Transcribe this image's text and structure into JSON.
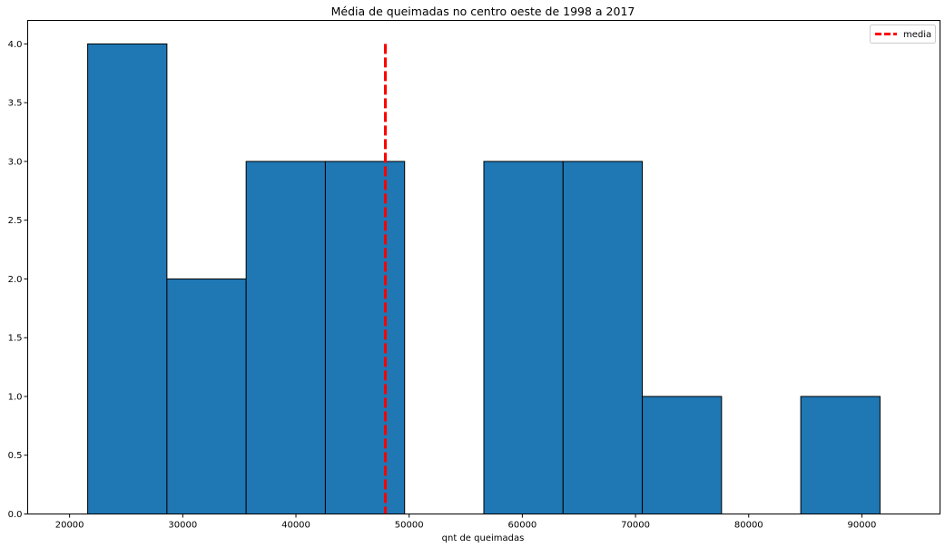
{
  "chart_data": {
    "type": "bar",
    "title": "Média de queimadas no centro oeste de 1998 a 2017",
    "xlabel": "qnt de queimadas",
    "ylabel": "",
    "bins": [
      {
        "start": 21600,
        "end": 28600,
        "count": 4
      },
      {
        "start": 28600,
        "end": 35600,
        "count": 2
      },
      {
        "start": 35600,
        "end": 42600,
        "count": 3
      },
      {
        "start": 42600,
        "end": 49600,
        "count": 3
      },
      {
        "start": 49600,
        "end": 56600,
        "count": 0
      },
      {
        "start": 56600,
        "end": 63600,
        "count": 3
      },
      {
        "start": 63600,
        "end": 70600,
        "count": 3
      },
      {
        "start": 70600,
        "end": 77600,
        "count": 1
      },
      {
        "start": 77600,
        "end": 84600,
        "count": 0
      },
      {
        "start": 84600,
        "end": 91600,
        "count": 1
      }
    ],
    "mean_line": {
      "name": "media",
      "x": 47900,
      "y_top": 4.0,
      "color": "#ff0000",
      "style": "dashed"
    },
    "bar_color": "#1f77b4",
    "edge_color": "#000000",
    "xlim": [
      16300,
      96900
    ],
    "ylim": [
      0,
      4.2
    ],
    "x_ticks": [
      20000,
      30000,
      40000,
      50000,
      60000,
      70000,
      80000,
      90000
    ],
    "x_tick_labels": [
      "20000",
      "30000",
      "40000",
      "50000",
      "60000",
      "70000",
      "80000",
      "90000"
    ],
    "y_ticks": [
      0,
      0.5,
      1.0,
      1.5,
      2.0,
      2.5,
      3.0,
      3.5,
      4.0
    ],
    "y_tick_labels": [
      "0.0",
      "0.5",
      "1.0",
      "1.5",
      "2.0",
      "2.5",
      "3.0",
      "3.5",
      "4.0"
    ],
    "grid": false,
    "legend": {
      "position": "top-right",
      "entries": [
        "media"
      ]
    }
  }
}
